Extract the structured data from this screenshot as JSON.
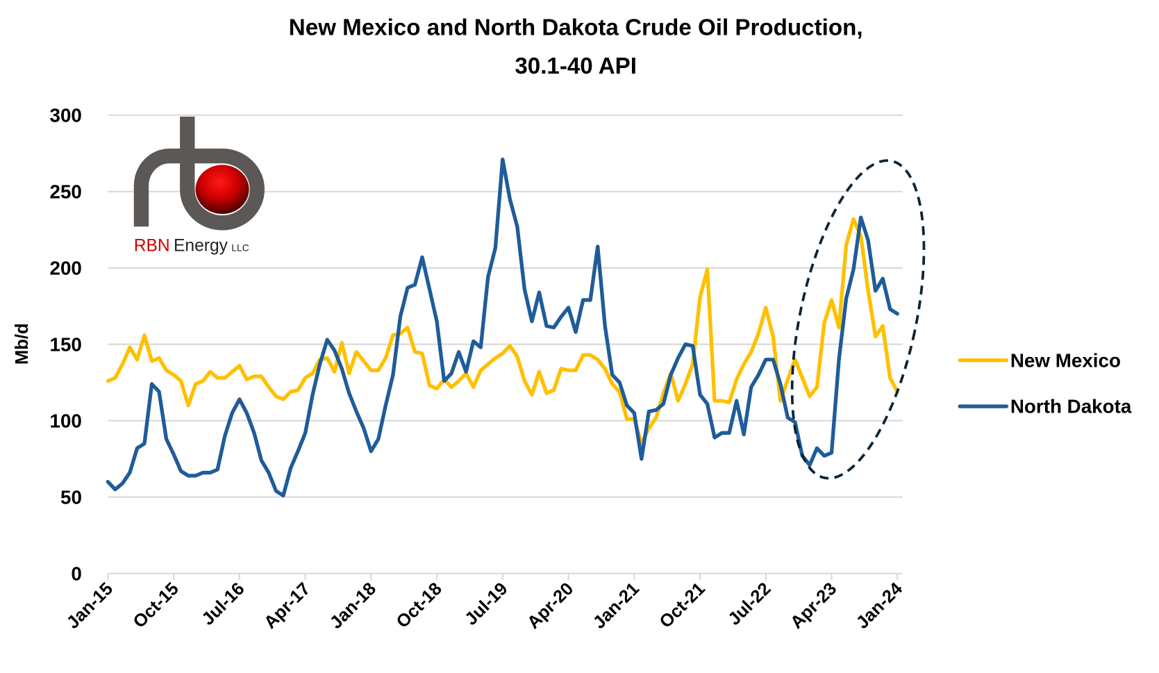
{
  "chart_data": {
    "type": "line",
    "title": "New Mexico and North Dakota Crude Oil Production,",
    "subtitle": "30.1-40 API",
    "ylabel": "Mb/d",
    "xlabel": "",
    "ylim": [
      0,
      300
    ],
    "yticks": [
      0,
      50,
      100,
      150,
      200,
      250,
      300
    ],
    "grid": true,
    "legend": "right",
    "x_start": "Jan-15",
    "x_end": "Jan-24",
    "x_frequency": "monthly",
    "xtick_labels": [
      "Jan-15",
      "Oct-15",
      "Jul-16",
      "Apr-17",
      "Jan-18",
      "Oct-18",
      "Jul-19",
      "Apr-20",
      "Jan-21",
      "Oct-21",
      "Jul-22",
      "Apr-23",
      "Jan-24"
    ],
    "series": [
      {
        "name": "New Mexico",
        "color": "#FFC000",
        "values": [
          126,
          128,
          137,
          148,
          140,
          156,
          139,
          141,
          133,
          130,
          126,
          110,
          124,
          126,
          132,
          128,
          128,
          132,
          136,
          127,
          129,
          129,
          122,
          116,
          114,
          119,
          120,
          128,
          131,
          140,
          141,
          132,
          151,
          131,
          145,
          139,
          133,
          133,
          141,
          156,
          157,
          161,
          145,
          144,
          123,
          121,
          127,
          122,
          126,
          131,
          122,
          133,
          137,
          141,
          144,
          149,
          142,
          126,
          117,
          132,
          118,
          120,
          134,
          133,
          133,
          143,
          143,
          140,
          134,
          124,
          119,
          101,
          101,
          85,
          95,
          102,
          118,
          131,
          113,
          124,
          137,
          181,
          199,
          113,
          113,
          112,
          127,
          137,
          145,
          157,
          174,
          155,
          113,
          127,
          140,
          128,
          116,
          122,
          164,
          179,
          161,
          215,
          232,
          221,
          185,
          155,
          162,
          128,
          119
        ]
      },
      {
        "name": "North Dakota",
        "color": "#1F5C99",
        "values": [
          60,
          55,
          59,
          66,
          82,
          85,
          124,
          119,
          88,
          78,
          67,
          64,
          64,
          66,
          66,
          68,
          90,
          105,
          114,
          105,
          92,
          74,
          66,
          54,
          51,
          69,
          80,
          92,
          117,
          137,
          153,
          146,
          134,
          118,
          106,
          95,
          80,
          88,
          110,
          130,
          168,
          187,
          189,
          207,
          186,
          165,
          126,
          131,
          145,
          132,
          152,
          148,
          194,
          213,
          271,
          245,
          227,
          186,
          165,
          184,
          162,
          161,
          168,
          174,
          158,
          179,
          179,
          214,
          162,
          130,
          125,
          110,
          105,
          75,
          106,
          107,
          111,
          130,
          141,
          150,
          149,
          117,
          111,
          89,
          92,
          92,
          113,
          91,
          122,
          130,
          140,
          140,
          124,
          102,
          99,
          77,
          71,
          82,
          77,
          79,
          140,
          180,
          199,
          233,
          218,
          185,
          193,
          173,
          170
        ]
      }
    ],
    "annotation": "dashed ellipse highlighting Jan-23 to Jan-24"
  },
  "logo": {
    "brand": "RBN",
    "name": "Energy",
    "suffix": "LLC"
  }
}
